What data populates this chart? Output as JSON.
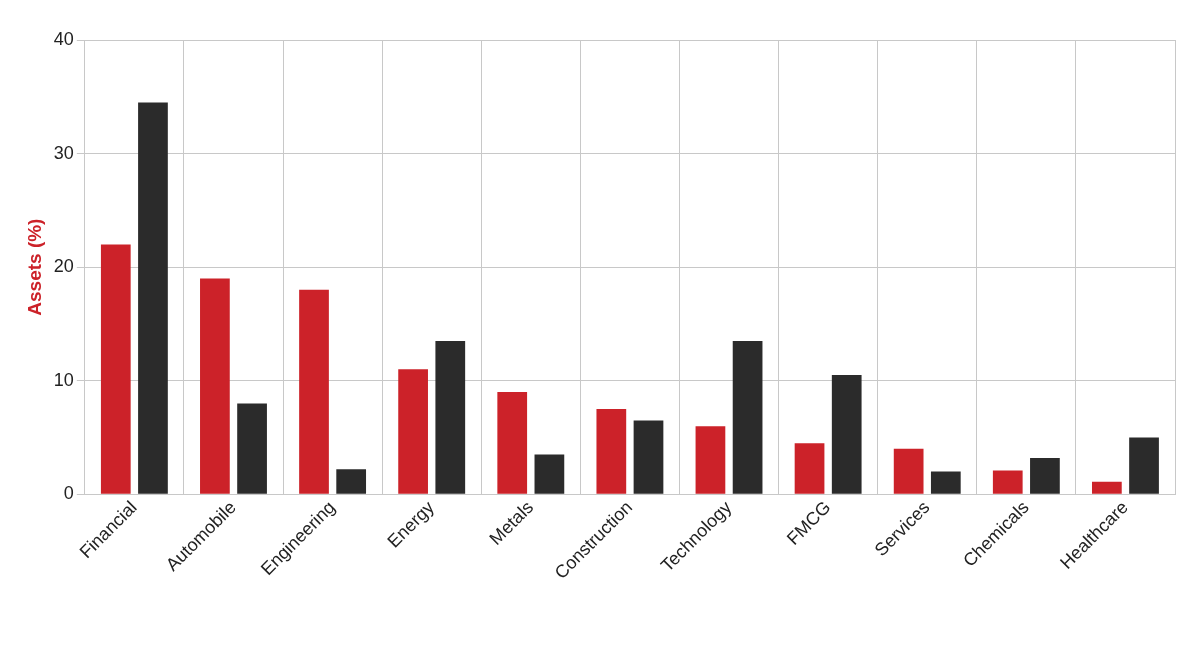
{
  "chart_data": {
    "type": "bar",
    "ylabel": "Assets (%)",
    "categories": [
      "Financial",
      "Automobile",
      "Engineering",
      "Energy",
      "Metals",
      "Construction",
      "Technology",
      "FMCG",
      "Services",
      "Chemicals",
      "Healthcare"
    ],
    "series": [
      {
        "color": "#cc2229",
        "values": [
          22,
          19,
          18,
          11,
          9,
          7.5,
          6,
          4.5,
          4,
          2.1,
          1.1
        ]
      },
      {
        "color": "#2b2b2b",
        "values": [
          34.5,
          8,
          2.2,
          13.5,
          3.5,
          6.5,
          13.5,
          10.5,
          2,
          3.2,
          5
        ]
      }
    ],
    "ylim": [
      0,
      40
    ],
    "yticks": [
      0,
      10,
      20,
      30,
      40
    ],
    "grid": true
  }
}
